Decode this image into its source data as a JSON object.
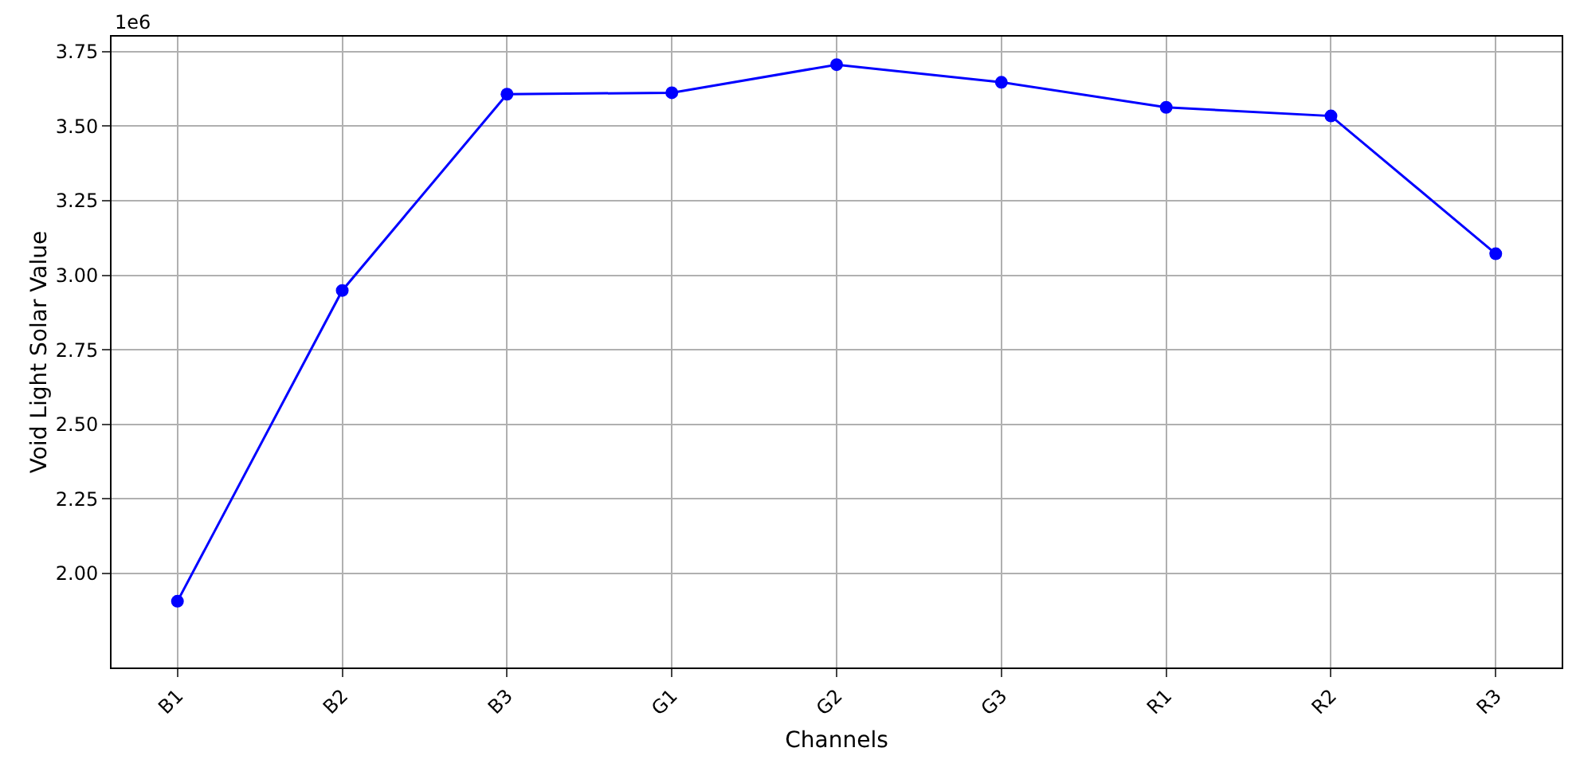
{
  "chart_data": {
    "type": "line",
    "xlabel": "Channels",
    "ylabel": "Void Light Solar Value",
    "categories": [
      "B1",
      "B2",
      "B3",
      "G1",
      "G2",
      "G3",
      "R1",
      "R2",
      "R3"
    ],
    "series": [
      {
        "color": "#0000ff",
        "values": [
          1.907,
          2.949,
          3.607,
          3.612,
          3.706,
          3.647,
          3.563,
          3.534,
          3.072
        ]
      }
    ],
    "ylim": [
      1.685,
      3.8
    ],
    "yticks": [
      {
        "value": 2,
        "label": "2.00"
      },
      {
        "value": 2.25,
        "label": "2.25"
      },
      {
        "value": 2.5,
        "label": "2.50"
      },
      {
        "value": 2.75,
        "label": "2.75"
      },
      {
        "value": 3,
        "label": "3.00"
      },
      {
        "value": 3.25,
        "label": "3.25"
      },
      {
        "value": 3.5,
        "label": "3.50"
      },
      {
        "value": 3.75,
        "label": "3.75"
      }
    ],
    "annotations": [
      "1e6"
    ],
    "grid": true,
    "marker": "circle",
    "line_style": "solid"
  }
}
